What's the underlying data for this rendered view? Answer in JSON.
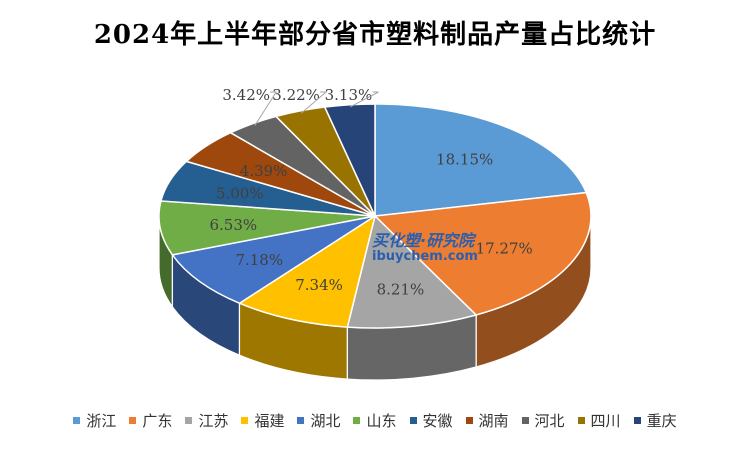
{
  "chart_data": {
    "type": "pie",
    "title": "2024年上半年部分省市塑料制品产量占比统计",
    "legend_position": "bottom",
    "slices": [
      {
        "label": "浙江",
        "value": 18.15,
        "display": "18.15%",
        "color": "#5b9bd5"
      },
      {
        "label": "广东",
        "value": 17.27,
        "display": "17.27%",
        "color": "#ed7d31"
      },
      {
        "label": "江苏",
        "value": 8.21,
        "display": "8.21%",
        "color": "#a5a5a5"
      },
      {
        "label": "福建",
        "value": 7.34,
        "display": "7.34%",
        "color": "#ffc000"
      },
      {
        "label": "湖北",
        "value": 7.18,
        "display": "7.18%",
        "color": "#4472c4"
      },
      {
        "label": "山东",
        "value": 6.53,
        "display": "6.53%",
        "color": "#70ad47"
      },
      {
        "label": "安徽",
        "value": 5.0,
        "display": "5.00%",
        "color": "#255e91"
      },
      {
        "label": "湖南",
        "value": 4.39,
        "display": "4.39%",
        "color": "#9e480e"
      },
      {
        "label": "河北",
        "value": 3.42,
        "display": "3.42%",
        "color": "#636363"
      },
      {
        "label": "四川",
        "value": 3.22,
        "display": "3.22%",
        "color": "#997300"
      },
      {
        "label": "重庆",
        "value": 3.13,
        "display": "3.13%",
        "color": "#264478"
      }
    ]
  },
  "watermark": {
    "cn": "买化塑·研究院",
    "en": "ibuychem.com"
  }
}
